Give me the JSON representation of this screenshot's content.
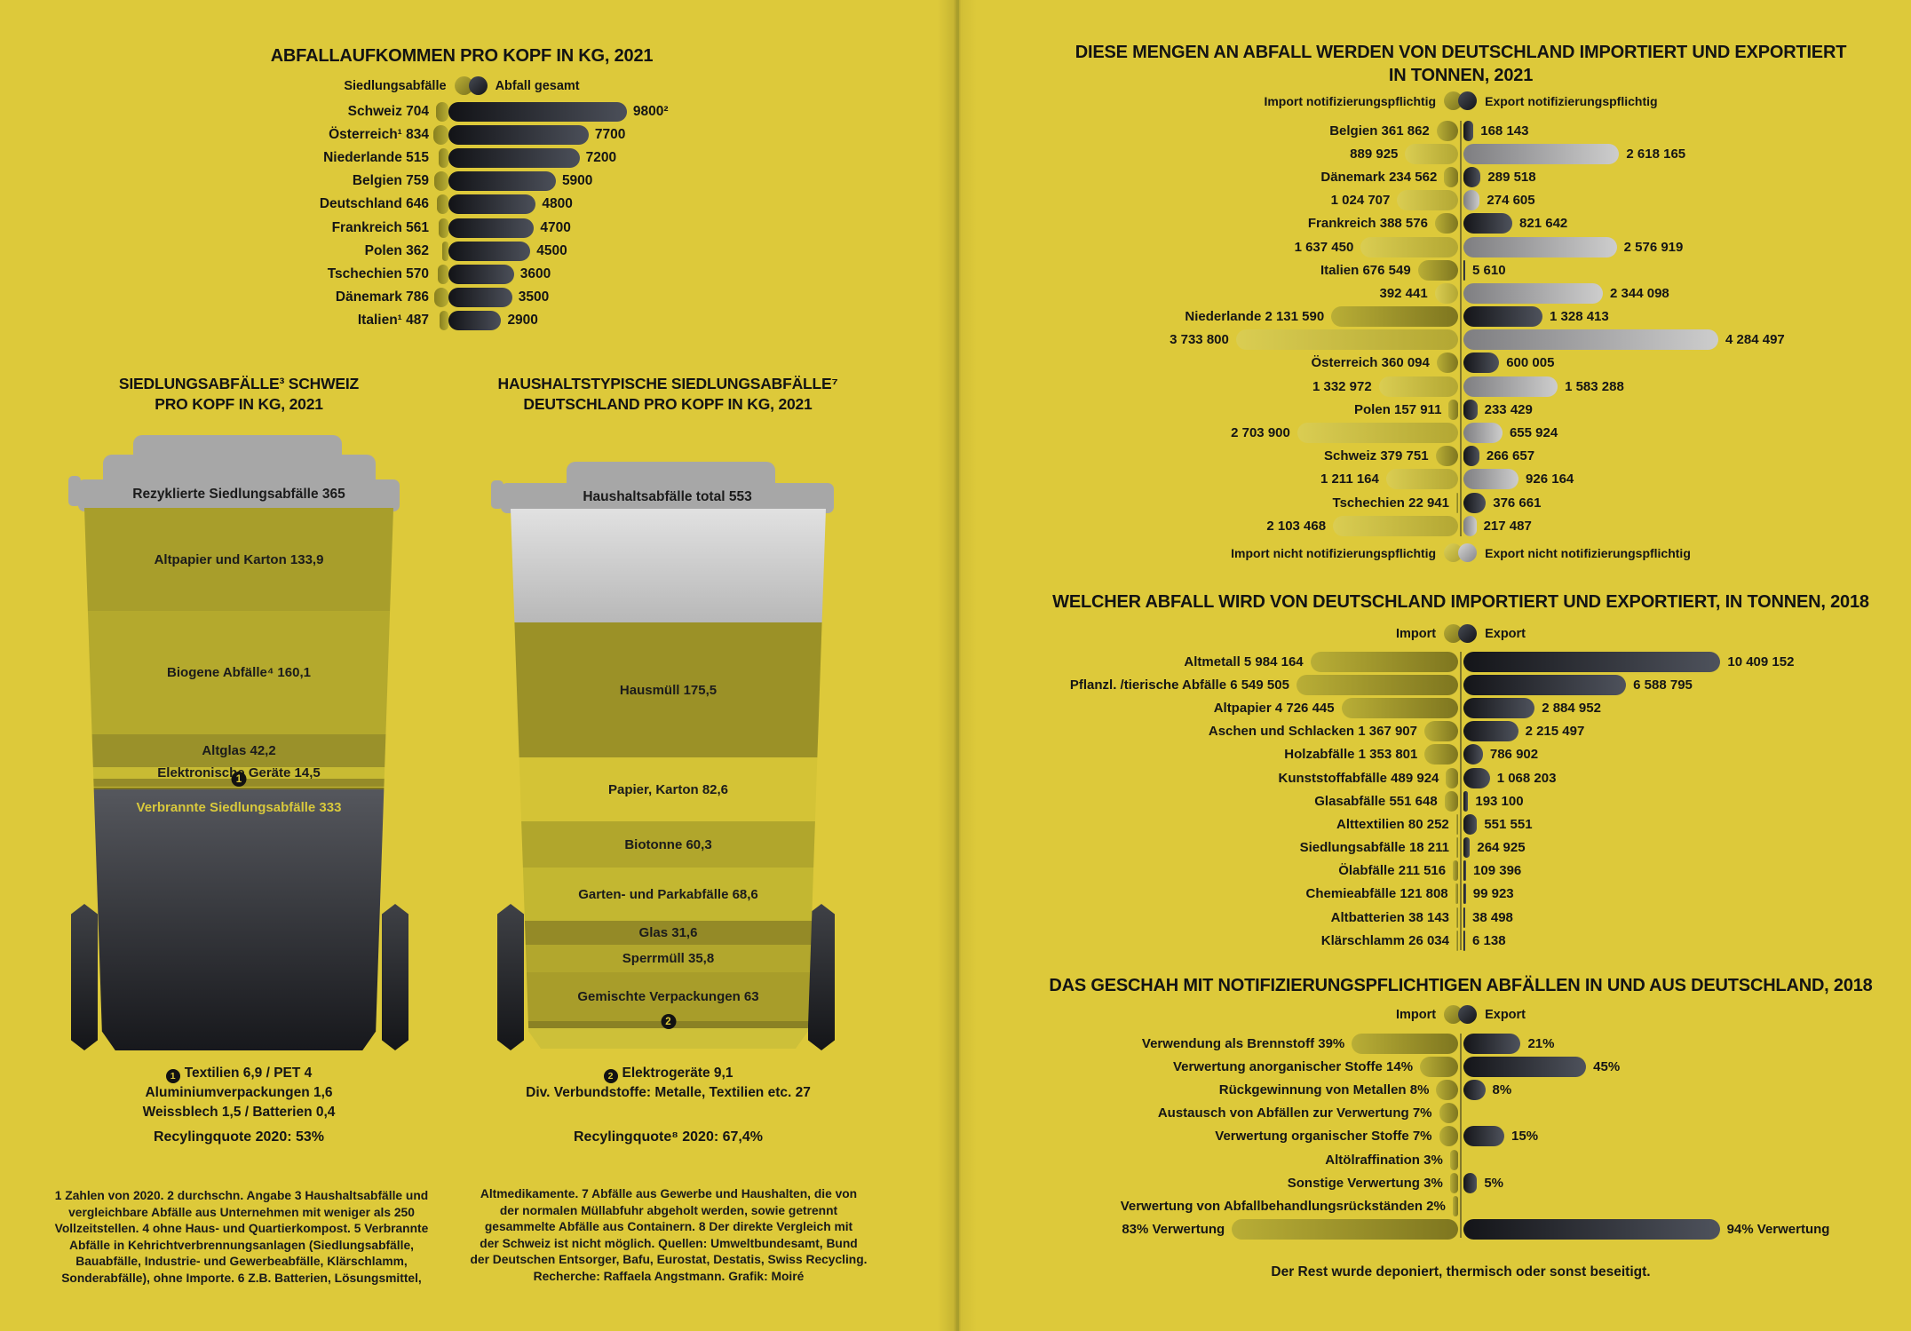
{
  "colors": {
    "background": "#ddc93a",
    "ink": "#151515",
    "import_notifizierungspflichtig": [
      "#b9ae36",
      "#7e761f"
    ],
    "import_nicht_notifizierungspflichtig": [
      "#dacd52",
      "#b3a733"
    ],
    "export_notifizierungspflichtig": [
      "#141519",
      "#4e525c"
    ],
    "export_nicht_notifizierungspflichtig": [
      "#7e7e81",
      "#cdcdcd"
    ],
    "lid_gray": "#a7a7a7",
    "burned_dark": [
      "#55575d",
      "#17181c"
    ],
    "badge": "#121212"
  },
  "chart_data": [
    {
      "id": "abfallaufkommen_pro_kopf",
      "type": "bar",
      "title": "ABFALLAUFKOMMEN PRO KOPF IN KG, 2021",
      "legend": [
        "Siedlungsabfälle",
        "Abfall gesamt"
      ],
      "rows": [
        {
          "label": "Schweiz 704",
          "siedlungsabfaelle": 704,
          "abfall_gesamt": 9800,
          "gesamt_label": "9800²"
        },
        {
          "label": "Österreich¹ 834",
          "siedlungsabfaelle": 834,
          "abfall_gesamt": 7700,
          "gesamt_label": "7700"
        },
        {
          "label": "Niederlande 515",
          "siedlungsabfaelle": 515,
          "abfall_gesamt": 7200,
          "gesamt_label": "7200"
        },
        {
          "label": "Belgien 759",
          "siedlungsabfaelle": 759,
          "abfall_gesamt": 5900,
          "gesamt_label": "5900"
        },
        {
          "label": "Deutschland 646",
          "siedlungsabfaelle": 646,
          "abfall_gesamt": 4800,
          "gesamt_label": "4800"
        },
        {
          "label": "Frankreich 561",
          "siedlungsabfaelle": 561,
          "abfall_gesamt": 4700,
          "gesamt_label": "4700"
        },
        {
          "label": "Polen 362",
          "siedlungsabfaelle": 362,
          "abfall_gesamt": 4500,
          "gesamt_label": "4500"
        },
        {
          "label": "Tschechien 570",
          "siedlungsabfaelle": 570,
          "abfall_gesamt": 3600,
          "gesamt_label": "3600"
        },
        {
          "label": "Dänemark 786",
          "siedlungsabfaelle": 786,
          "abfall_gesamt": 3500,
          "gesamt_label": "3500"
        },
        {
          "label": "Italien¹ 487",
          "siedlungsabfaelle": 487,
          "abfall_gesamt": 2900,
          "gesamt_label": "2900"
        }
      ]
    },
    {
      "id": "siedlungsabfaelle_schweiz",
      "type": "stacked-bar",
      "title_lines": [
        "SIEDLUNGSABFÄLLE³ SCHWEIZ",
        "PRO KOPF IN KG, 2021"
      ],
      "lid_label": "Rezyklierte Siedlungsabfälle 365",
      "lid_value": 365,
      "segments": [
        {
          "label": "Altpapier und Karton 133,9",
          "value": 133.9,
          "color": "#a89e2b"
        },
        {
          "label": "Biogene Abfälle⁴ 160,1",
          "value": 160.1,
          "color": "#b4a92d"
        },
        {
          "label": "Altglas 42,2",
          "value": 42.2,
          "color": "#9a912a"
        },
        {
          "label": "Elektronische Geräte 14,5",
          "value": 14.5,
          "color": "#c8bb33"
        }
      ],
      "micro_segments": [
        {
          "value": 10.9,
          "color": "#958b28"
        },
        {
          "value": 1.6,
          "color": "#c8bb33"
        },
        {
          "value": 1.9,
          "color": "#7d7520"
        }
      ],
      "micro_badge": "1",
      "burned": {
        "label": "Verbrannte Siedlungsabfälle 333",
        "value": 333
      },
      "footer_lines": [
        {
          "badge": "1",
          "text": "Textilien 6,9 / PET 4"
        },
        {
          "text": "Aluminiumverpackungen 1,6"
        },
        {
          "text": "Weissblech 1,5 / Batterien 0,4"
        }
      ],
      "recycling_note": "Recylingquote 2020: 53%"
    },
    {
      "id": "haushaltstypische_siedlungsabfaelle_deutschland",
      "type": "stacked-bar",
      "title_lines": [
        "HAUSHALTSTYPISCHE SIEDLUNGSABFÄLLE⁷",
        "DEUTSCHLAND PRO KOPF IN KG, 2021"
      ],
      "lid_label": "Haushaltsabfälle total 553",
      "lid_value": 553,
      "segments": [
        {
          "label": "Hausmüll 175,5",
          "value": 175.5,
          "color": "#9b9127"
        },
        {
          "label": "Papier, Karton 82,6",
          "value": 82.6,
          "color": "#d4c336"
        },
        {
          "label": "Biotonne 60,3",
          "value": 60.3,
          "color": "#b1a62c"
        },
        {
          "label": "Garten- und Parkabfälle 68,6",
          "value": 68.6,
          "color": "#c3b731"
        },
        {
          "label": "Glas 31,6",
          "value": 31.6,
          "color": "#948a27"
        },
        {
          "label": "Sperrmüll 35,8",
          "value": 35.8,
          "color": "#b2a72d"
        },
        {
          "label": "Gemischte Verpackungen 63",
          "value": 63,
          "color": "#a89d2a"
        }
      ],
      "micro_segments": [
        {
          "value": 9.1,
          "color": "#8a8124"
        },
        {
          "value": 27,
          "color": "#cdc039"
        }
      ],
      "micro_badge": "2",
      "footer_lines": [
        {
          "badge": "2",
          "text": "Elektrogeräte 9,1"
        },
        {
          "text": "Div. Verbundstoffe: Metalle, Textilien etc. 27"
        }
      ],
      "recycling_note": "Recylingquote⁸ 2020: 67,4%"
    },
    {
      "id": "import_export_tonnen_2021",
      "type": "bar",
      "title_lines": [
        "DIESE MENGEN AN ABFALL WERDEN VON DEUTSCHLAND IMPORTIERT UND  EXPORTIERT",
        "IN TONNEN, 2021"
      ],
      "legend_top": [
        "Import notifizierungspflichtig",
        "Export notifizierungspflichtig"
      ],
      "legend_bottom": [
        "Import nicht notifizierungspflichtig",
        "Export  nicht notifizierungspflichtig"
      ],
      "rows": [
        {
          "label": "Belgien 361 862",
          "import": 361862,
          "export": 168143,
          "export_label": "168 143",
          "notifizierungspflichtig": true
        },
        {
          "label": "889 925",
          "import": 889925,
          "export": 2618165,
          "export_label": "2 618 165",
          "notifizierungspflichtig": false
        },
        {
          "label": "Dänemark 234 562",
          "import": 234562,
          "export": 289518,
          "export_label": "289 518",
          "notifizierungspflichtig": true
        },
        {
          "label": "1 024 707",
          "import": 1024707,
          "export": 274605,
          "export_label": "274 605",
          "notifizierungspflichtig": false
        },
        {
          "label": "Frankreich 388 576",
          "import": 388576,
          "export": 821642,
          "export_label": "821 642",
          "notifizierungspflichtig": true
        },
        {
          "label": "1 637 450",
          "import": 1637450,
          "export": 2576919,
          "export_label": "2 576 919",
          "notifizierungspflichtig": false
        },
        {
          "label": "Italien 676 549",
          "import": 676549,
          "export": 5610,
          "export_label": "5 610",
          "notifizierungspflichtig": true
        },
        {
          "label": "392 441",
          "import": 392441,
          "export": 2344098,
          "export_label": "2 344 098",
          "notifizierungspflichtig": false
        },
        {
          "label": "Niederlande 2 131 590",
          "import": 2131590,
          "export": 1328413,
          "export_label": "1 328 413",
          "notifizierungspflichtig": true
        },
        {
          "label": "3 733 800",
          "import": 3733800,
          "export": 4284497,
          "export_label": "4 284 497",
          "notifizierungspflichtig": false
        },
        {
          "label": "Österreich 360 094",
          "import": 360094,
          "export": 600005,
          "export_label": "600 005",
          "notifizierungspflichtig": true
        },
        {
          "label": "1 332 972",
          "import": 1332972,
          "export": 1583288,
          "export_label": "1 583 288",
          "notifizierungspflichtig": false
        },
        {
          "label": "Polen 157 911",
          "import": 157911,
          "export": 233429,
          "export_label": "233 429",
          "notifizierungspflichtig": true
        },
        {
          "label": "2 703 900",
          "import": 2703900,
          "export": 655924,
          "export_label": "655 924",
          "notifizierungspflichtig": false
        },
        {
          "label": "Schweiz 379 751",
          "import": 379751,
          "export": 266657,
          "export_label": "266 657",
          "notifizierungspflichtig": true
        },
        {
          "label": "1 211 164",
          "import": 1211164,
          "export": 926164,
          "export_label": "926 164",
          "notifizierungspflichtig": false
        },
        {
          "label": "Tschechien 22 941",
          "import": 22941,
          "export": 376661,
          "export_label": "376 661",
          "notifizierungspflichtig": true
        },
        {
          "label": "2 103 468",
          "import": 2103468,
          "export": 217487,
          "export_label": "217 487",
          "notifizierungspflichtig": false
        }
      ]
    },
    {
      "id": "abfallarten_import_export_2018",
      "type": "bar",
      "title": "WELCHER ABFALL WIRD VON DEUTSCHLAND IMPORTIERT UND EXPORTIERT, IN TONNEN, 2018",
      "legend": [
        "Import",
        "Export"
      ],
      "rows": [
        {
          "label": "Altmetall 5 984 164",
          "import": 5984164,
          "export": 10409152,
          "export_label": "10 409 152"
        },
        {
          "label": "Pflanzl. /tierische Abfälle 6 549 505",
          "import": 6549505,
          "export": 6588795,
          "export_label": "6 588 795"
        },
        {
          "label": "Altpapier 4 726 445",
          "import": 4726445,
          "export": 2884952,
          "export_label": "2 884 952"
        },
        {
          "label": "Aschen und Schlacken 1 367 907",
          "import": 1367907,
          "export": 2215497,
          "export_label": "2 215 497"
        },
        {
          "label": "Holzabfälle 1 353 801",
          "import": 1353801,
          "export": 786902,
          "export_label": "786 902"
        },
        {
          "label": "Kunststoffabfälle 489 924",
          "import": 489924,
          "export": 1068203,
          "export_label": "1 068 203"
        },
        {
          "label": "Glasabfälle 551 648",
          "import": 551648,
          "export": 193100,
          "export_label": "193 100"
        },
        {
          "label": "Alttextilien 80 252",
          "import": 80252,
          "export": 551551,
          "export_label": "551 551"
        },
        {
          "label": "Siedlungsabfälle 18 211",
          "import": 18211,
          "export": 264925,
          "export_label": "264 925"
        },
        {
          "label": "Ölabfälle 211 516",
          "import": 211516,
          "export": 109396,
          "export_label": "109 396"
        },
        {
          "label": "Chemieabfälle 121 808",
          "import": 121808,
          "export": 99923,
          "export_label": "99 923"
        },
        {
          "label": "Altbatterien 38 143",
          "import": 38143,
          "export": 38498,
          "export_label": "38 498"
        },
        {
          "label": "Klärschlamm 26 034",
          "import": 26034,
          "export": 6138,
          "export_label": "6 138"
        }
      ]
    },
    {
      "id": "verwertung_notifizierungspflichtige_abfaelle_2018",
      "type": "bar",
      "title": "DAS GESCHAH MIT NOTIFIZIERUNGSPFLICHTIGEN ABFÄLLEN IN UND AUS DEUTSCHLAND, 2018",
      "legend": [
        "Import",
        "Export"
      ],
      "rows": [
        {
          "label": "Verwendung als Brennstoff 39%",
          "import": 39,
          "export": 21,
          "export_label": "21%"
        },
        {
          "label": "Verwertung anorganischer Stoffe 14%",
          "import": 14,
          "export": 45,
          "export_label": "45%"
        },
        {
          "label": "Rückgewinnung von Metallen 8%",
          "import": 8,
          "export": 8,
          "export_label": "8%"
        },
        {
          "label": "Austausch von Abfällen zur Verwertung 7%",
          "import": 7,
          "export": null,
          "export_label": ""
        },
        {
          "label": "Verwertung organischer Stoffe 7%",
          "import": 7,
          "export": 15,
          "export_label": "15%"
        },
        {
          "label": "Altölraffination 3%",
          "import": 3,
          "export": null,
          "export_label": ""
        },
        {
          "label": "Sonstige Verwertung 3%",
          "import": 3,
          "export": 5,
          "export_label": "5%"
        },
        {
          "label": "Verwertung von Abfallbehandlungsrückständen 2%",
          "import": 2,
          "export": null,
          "export_label": ""
        },
        {
          "label": "83% Verwertung",
          "import": 83,
          "export": 94,
          "export_label": "94% Verwertung"
        }
      ],
      "footer": "Der Rest wurde deponiert, thermisch oder sonst beseitigt."
    }
  ],
  "footnotes": {
    "left": [
      "1 Zahlen von 2020. 2 durchschn. Angabe 3 Haushaltsabfälle und",
      "vergleichbare Abfälle aus Unternehmen mit weniger als 250",
      "Vollzeitstellen. 4 ohne Haus- und Quartierkompost. 5 Verbrannte",
      "Abfälle in Kehrichtverbrennungsanlagen (Siedlungsabfälle,",
      "Bauabfälle, Industrie- und Gewerbeabfälle, Klärschlamm,",
      "Sonderabfälle), ohne Importe. 6 Z.B. Batterien, Lösungsmittel,"
    ],
    "right": [
      "Altmedikamente. 7 Abfälle aus Gewerbe und Haushalten, die von",
      "der normalen Müllabfuhr abgeholt werden, sowie getrennt",
      "gesammelte Abfälle aus Containern. 8 Der direkte Vergleich mit",
      "der Schweiz ist nicht möglich. Quellen: Umweltbundesamt, Bund",
      "der Deutschen Entsorger, Bafu, Eurostat, Destatis, Swiss Recycling.",
      "Recherche: Raffaela Angstmann. Grafik: Moiré"
    ]
  }
}
